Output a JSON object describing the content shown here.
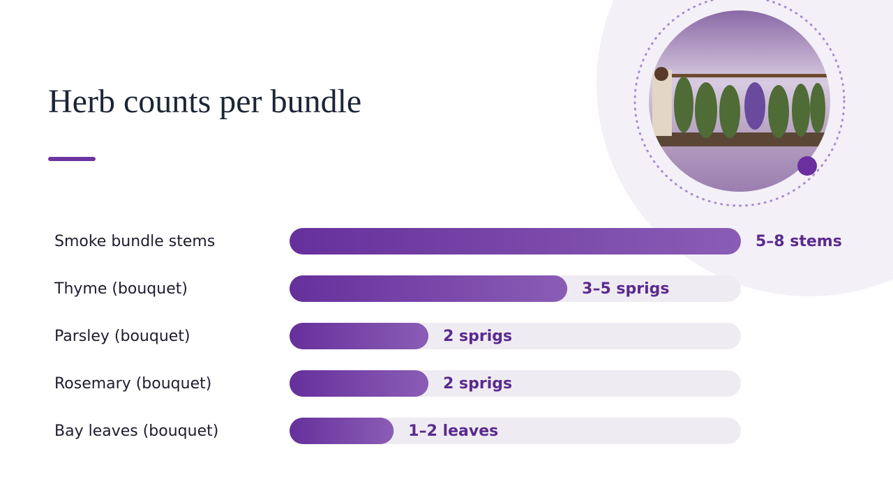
{
  "chart_data": {
    "type": "bar",
    "orientation": "horizontal",
    "title": "Herb counts per bundle",
    "categories": [
      "Smoke bundle stems",
      "Thyme (bouquet)",
      "Parsley (bouquet)",
      "Rosemary (bouquet)",
      "Bay leaves (bouquet)"
    ],
    "values": [
      6.5,
      4,
      2,
      2,
      1.5
    ],
    "value_labels": [
      "5–8 stems",
      "3–5 sprigs",
      "2 sprigs",
      "2 sprigs",
      "1–2 leaves"
    ],
    "color": "#6b35a0",
    "xlim": [
      0,
      6.5
    ]
  }
}
